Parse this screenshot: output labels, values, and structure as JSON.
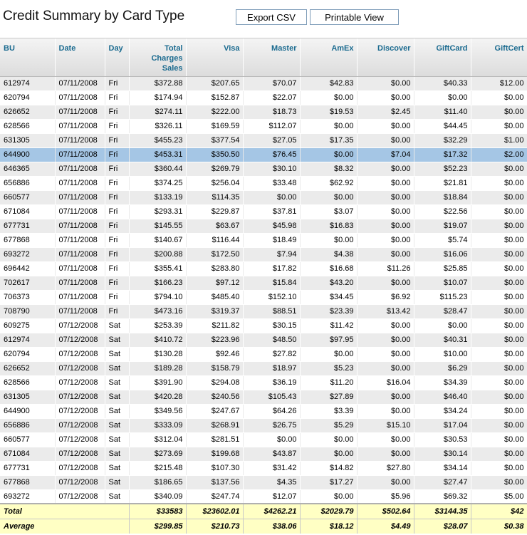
{
  "page": {
    "title": "Credit Summary by Card Type",
    "export_label": "Export CSV",
    "print_label": "Printable View"
  },
  "table": {
    "headers": {
      "bu": "BU",
      "date": "Date",
      "day": "Day",
      "total": "Total Charges Sales",
      "visa": "Visa",
      "master": "Master",
      "amex": "AmEx",
      "discover": "Discover",
      "giftcard": "GiftCard",
      "giftcert": "GiftCert"
    },
    "selected_row": 5,
    "rows": [
      [
        "612974",
        "07/11/2008",
        "Fri",
        "$372.88",
        "$207.65",
        "$70.07",
        "$42.83",
        "$0.00",
        "$40.33",
        "$12.00"
      ],
      [
        "620794",
        "07/11/2008",
        "Fri",
        "$174.94",
        "$152.87",
        "$22.07",
        "$0.00",
        "$0.00",
        "$0.00",
        "$0.00"
      ],
      [
        "626652",
        "07/11/2008",
        "Fri",
        "$274.11",
        "$222.00",
        "$18.73",
        "$19.53",
        "$2.45",
        "$11.40",
        "$0.00"
      ],
      [
        "628566",
        "07/11/2008",
        "Fri",
        "$326.11",
        "$169.59",
        "$112.07",
        "$0.00",
        "$0.00",
        "$44.45",
        "$0.00"
      ],
      [
        "631305",
        "07/11/2008",
        "Fri",
        "$455.23",
        "$377.54",
        "$27.05",
        "$17.35",
        "$0.00",
        "$32.29",
        "$1.00"
      ],
      [
        "644900",
        "07/11/2008",
        "Fri",
        "$453.31",
        "$350.50",
        "$76.45",
        "$0.00",
        "$7.04",
        "$17.32",
        "$2.00"
      ],
      [
        "646365",
        "07/11/2008",
        "Fri",
        "$360.44",
        "$269.79",
        "$30.10",
        "$8.32",
        "$0.00",
        "$52.23",
        "$0.00"
      ],
      [
        "656886",
        "07/11/2008",
        "Fri",
        "$374.25",
        "$256.04",
        "$33.48",
        "$62.92",
        "$0.00",
        "$21.81",
        "$0.00"
      ],
      [
        "660577",
        "07/11/2008",
        "Fri",
        "$133.19",
        "$114.35",
        "$0.00",
        "$0.00",
        "$0.00",
        "$18.84",
        "$0.00"
      ],
      [
        "671084",
        "07/11/2008",
        "Fri",
        "$293.31",
        "$229.87",
        "$37.81",
        "$3.07",
        "$0.00",
        "$22.56",
        "$0.00"
      ],
      [
        "677731",
        "07/11/2008",
        "Fri",
        "$145.55",
        "$63.67",
        "$45.98",
        "$16.83",
        "$0.00",
        "$19.07",
        "$0.00"
      ],
      [
        "677868",
        "07/11/2008",
        "Fri",
        "$140.67",
        "$116.44",
        "$18.49",
        "$0.00",
        "$0.00",
        "$5.74",
        "$0.00"
      ],
      [
        "693272",
        "07/11/2008",
        "Fri",
        "$200.88",
        "$172.50",
        "$7.94",
        "$4.38",
        "$0.00",
        "$16.06",
        "$0.00"
      ],
      [
        "696442",
        "07/11/2008",
        "Fri",
        "$355.41",
        "$283.80",
        "$17.82",
        "$16.68",
        "$11.26",
        "$25.85",
        "$0.00"
      ],
      [
        "702617",
        "07/11/2008",
        "Fri",
        "$166.23",
        "$97.12",
        "$15.84",
        "$43.20",
        "$0.00",
        "$10.07",
        "$0.00"
      ],
      [
        "706373",
        "07/11/2008",
        "Fri",
        "$794.10",
        "$485.40",
        "$152.10",
        "$34.45",
        "$6.92",
        "$115.23",
        "$0.00"
      ],
      [
        "708790",
        "07/11/2008",
        "Fri",
        "$473.16",
        "$319.37",
        "$88.51",
        "$23.39",
        "$13.42",
        "$28.47",
        "$0.00"
      ],
      [
        "609275",
        "07/12/2008",
        "Sat",
        "$253.39",
        "$211.82",
        "$30.15",
        "$11.42",
        "$0.00",
        "$0.00",
        "$0.00"
      ],
      [
        "612974",
        "07/12/2008",
        "Sat",
        "$410.72",
        "$223.96",
        "$48.50",
        "$97.95",
        "$0.00",
        "$40.31",
        "$0.00"
      ],
      [
        "620794",
        "07/12/2008",
        "Sat",
        "$130.28",
        "$92.46",
        "$27.82",
        "$0.00",
        "$0.00",
        "$10.00",
        "$0.00"
      ],
      [
        "626652",
        "07/12/2008",
        "Sat",
        "$189.28",
        "$158.79",
        "$18.97",
        "$5.23",
        "$0.00",
        "$6.29",
        "$0.00"
      ],
      [
        "628566",
        "07/12/2008",
        "Sat",
        "$391.90",
        "$294.08",
        "$36.19",
        "$11.20",
        "$16.04",
        "$34.39",
        "$0.00"
      ],
      [
        "631305",
        "07/12/2008",
        "Sat",
        "$420.28",
        "$240.56",
        "$105.43",
        "$27.89",
        "$0.00",
        "$46.40",
        "$0.00"
      ],
      [
        "644900",
        "07/12/2008",
        "Sat",
        "$349.56",
        "$247.67",
        "$64.26",
        "$3.39",
        "$0.00",
        "$34.24",
        "$0.00"
      ],
      [
        "656886",
        "07/12/2008",
        "Sat",
        "$333.09",
        "$268.91",
        "$26.75",
        "$5.29",
        "$15.10",
        "$17.04",
        "$0.00"
      ],
      [
        "660577",
        "07/12/2008",
        "Sat",
        "$312.04",
        "$281.51",
        "$0.00",
        "$0.00",
        "$0.00",
        "$30.53",
        "$0.00"
      ],
      [
        "671084",
        "07/12/2008",
        "Sat",
        "$273.69",
        "$199.68",
        "$43.87",
        "$0.00",
        "$0.00",
        "$30.14",
        "$0.00"
      ],
      [
        "677731",
        "07/12/2008",
        "Sat",
        "$215.48",
        "$107.30",
        "$31.42",
        "$14.82",
        "$27.80",
        "$34.14",
        "$0.00"
      ],
      [
        "677868",
        "07/12/2008",
        "Sat",
        "$186.65",
        "$137.56",
        "$4.35",
        "$17.27",
        "$0.00",
        "$27.47",
        "$0.00"
      ],
      [
        "693272",
        "07/12/2008",
        "Sat",
        "$340.09",
        "$247.74",
        "$12.07",
        "$0.00",
        "$5.96",
        "$69.32",
        "$5.00"
      ]
    ],
    "footer": [
      [
        "Total",
        "$33583",
        "$23602.01",
        "$4262.21",
        "$2029.79",
        "$502.64",
        "$3144.35",
        "$42"
      ],
      [
        "Average",
        "$299.85",
        "$210.73",
        "$38.06",
        "$18.12",
        "$4.49",
        "$28.07",
        "$0.38"
      ]
    ]
  },
  "colors": {
    "header_text": "#1a6a8f",
    "row_alt": "#ebebeb",
    "row_selected": "#a5c6e5",
    "footer_bg": "#ffffc4"
  }
}
